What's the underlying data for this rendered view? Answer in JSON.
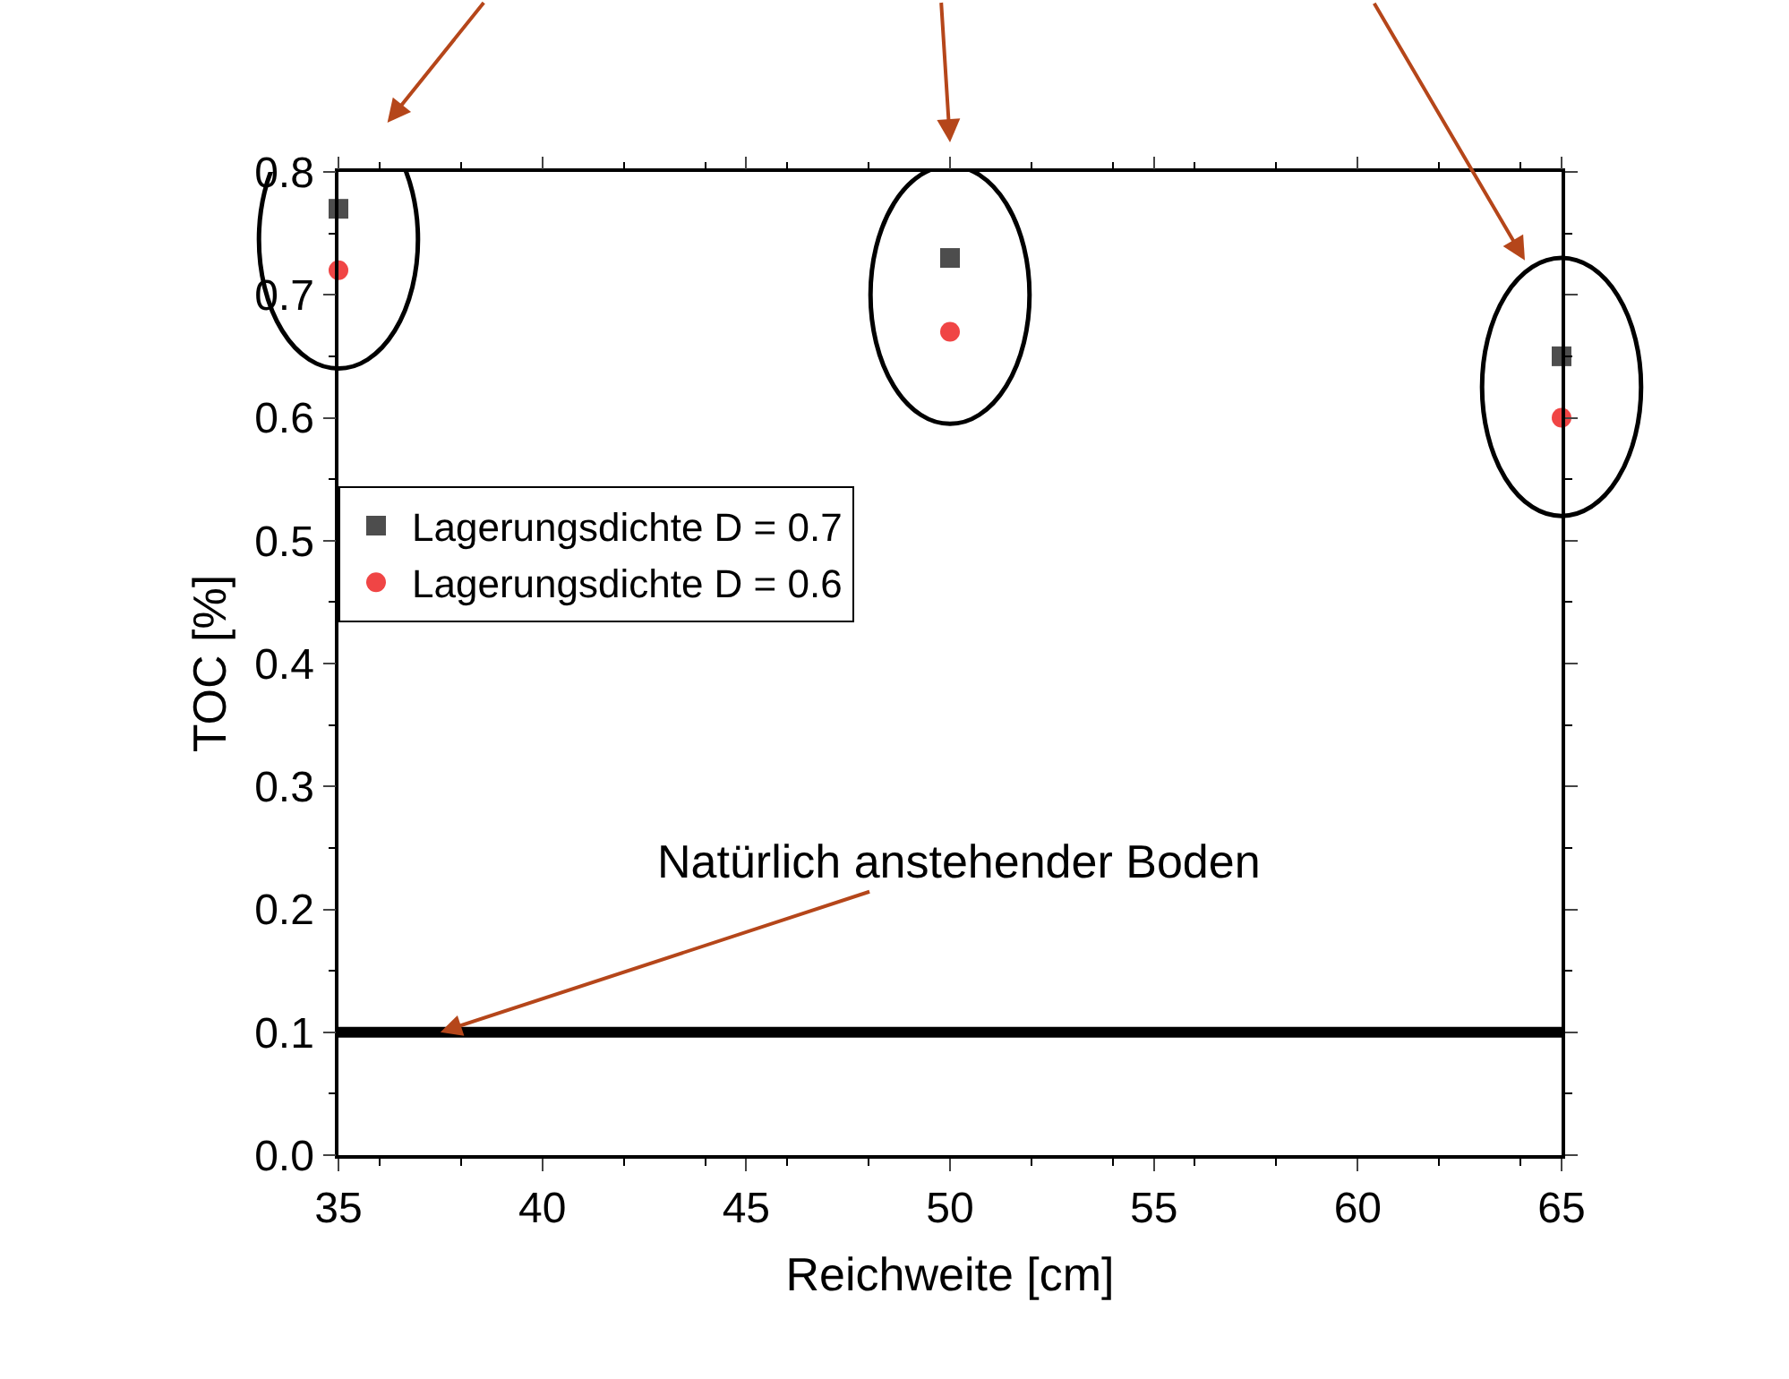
{
  "chart_data": {
    "type": "scatter",
    "xlabel": "Reichweite [cm]",
    "ylabel": "TOC [%]",
    "x": [
      35,
      50,
      65
    ],
    "series": [
      {
        "name": "Lagerungsdichte D = 0.7",
        "color": "#4d4d4d",
        "marker": "square",
        "values": [
          0.77,
          0.73,
          0.65
        ]
      },
      {
        "name": "Lagerungsdichte D = 0.6",
        "color": "#f04545",
        "marker": "circle",
        "values": [
          0.72,
          0.67,
          0.6
        ]
      }
    ],
    "xlim": [
      35,
      65
    ],
    "xticks": [
      35,
      40,
      45,
      50,
      55,
      60,
      65
    ],
    "ylim": [
      0,
      0.8
    ],
    "yticks": [
      {
        "value": 0,
        "label": "0.0"
      },
      0.1,
      0.2,
      0.3,
      0.4,
      0.5,
      0.6,
      0.7,
      0.8
    ],
    "ref_lines": [
      {
        "axis": "y",
        "value": 0.1,
        "color": "#000000"
      }
    ],
    "annotations": [
      {
        "text": "Natürlich anstehender Boden",
        "x": 37.5,
        "y": 0.1
      }
    ],
    "legend": "left"
  }
}
